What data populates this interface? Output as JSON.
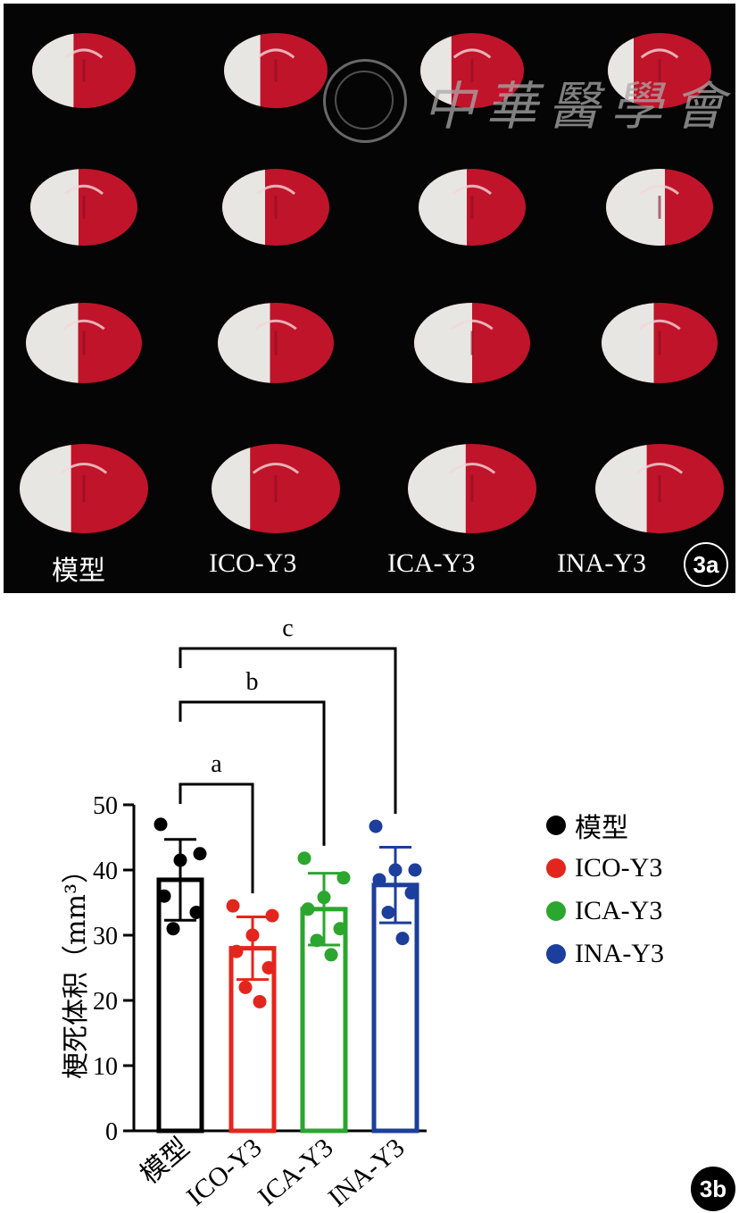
{
  "panel_a": {
    "badge": "3a",
    "group_labels": [
      "模型",
      "ICO-Y3",
      "ICA-Y3",
      "INA-Y3"
    ]
  },
  "panel_b": {
    "badge": "3b"
  },
  "colors": {
    "模型": "#000000",
    "ICO-Y3": "#e3261d",
    "ICA-Y3": "#2ba62e",
    "INA-Y3": "#1c3e9c",
    "tissue_red": "#c0142a",
    "tissue_white": "#e8e6e3"
  },
  "chart_data": {
    "type": "bar",
    "title": "",
    "xlabel": "",
    "ylabel": "梗死体积（mm³）",
    "ylim": [
      0,
      50
    ],
    "yticks": [
      0,
      10,
      20,
      30,
      40,
      50
    ],
    "categories": [
      "模型",
      "ICO-Y3",
      "ICA-Y3",
      "INA-Y3"
    ],
    "series": [
      {
        "values": [
          38.5,
          28.0,
          34.0,
          37.7
        ],
        "sd": [
          6.2,
          4.8,
          5.5,
          5.8
        ],
        "points": [
          [
            47.0,
            42.5,
            41.5,
            36.0,
            33.5,
            31.0
          ],
          [
            34.5,
            33.0,
            30.0,
            27.5,
            25.0,
            22.0,
            19.8
          ],
          [
            41.8,
            38.8,
            35.8,
            34.0,
            31.0,
            29.2,
            27.0
          ],
          [
            46.7,
            40.0,
            40.0,
            38.5,
            36.5,
            33.5,
            29.5
          ]
        ]
      }
    ],
    "significance": [
      {
        "label": "a",
        "from": "模型",
        "to": "ICO-Y3"
      },
      {
        "label": "b",
        "from": "模型",
        "to": "ICA-Y3"
      },
      {
        "label": "c",
        "from": "模型",
        "to": "INA-Y3"
      }
    ],
    "legend": [
      "模型",
      "ICO-Y3",
      "ICA-Y3",
      "INA-Y3"
    ],
    "legend_position": "right"
  }
}
